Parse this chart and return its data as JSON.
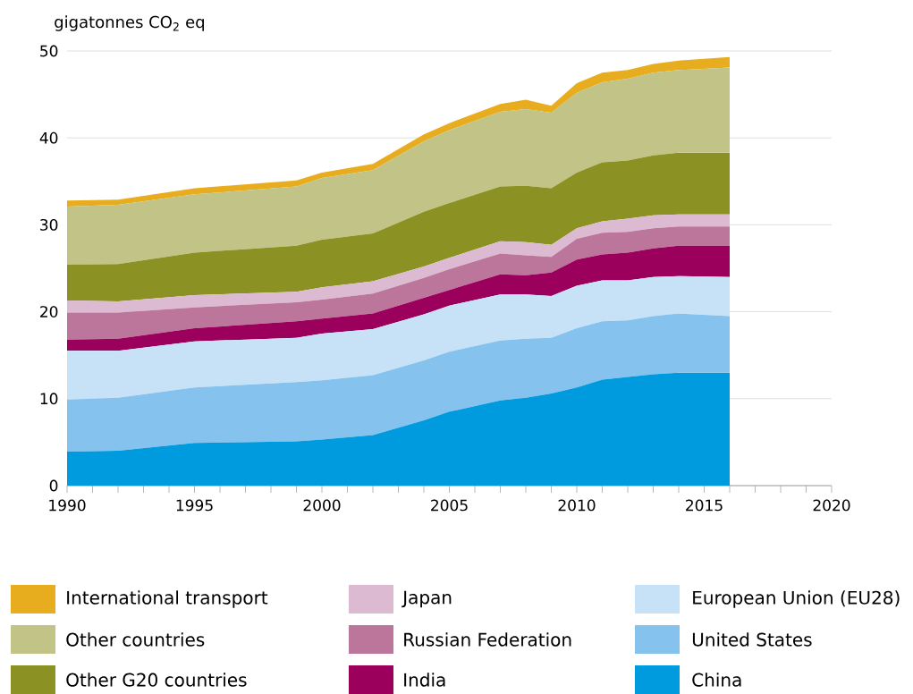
{
  "chart_data": {
    "type": "area",
    "stacked": true,
    "ylabel": "gigatonnes CO$_{2}$ eq",
    "x": [
      1990,
      1992,
      1995,
      1999,
      2000,
      2002,
      2004,
      2005,
      2007,
      2008,
      2009,
      2010,
      2011,
      2012,
      2013,
      2014,
      2016
    ],
    "series": [
      {
        "name": "China",
        "color": "#009ade",
        "values": [
          3.9,
          4.0,
          4.9,
          5.1,
          5.3,
          5.8,
          7.5,
          8.5,
          9.8,
          10.1,
          10.6,
          11.3,
          12.2,
          12.5,
          12.8,
          13.0,
          13.0
        ]
      },
      {
        "name": "United States",
        "color": "#85c2ed",
        "values": [
          6.0,
          6.1,
          6.4,
          6.8,
          6.8,
          6.9,
          6.9,
          6.9,
          6.9,
          6.8,
          6.4,
          6.8,
          6.7,
          6.5,
          6.7,
          6.8,
          6.5
        ]
      },
      {
        "name": "European Union (EU28)",
        "color": "#c7e2f7",
        "values": [
          5.6,
          5.4,
          5.3,
          5.1,
          5.4,
          5.3,
          5.3,
          5.3,
          5.3,
          5.1,
          4.8,
          4.9,
          4.7,
          4.6,
          4.5,
          4.3,
          4.5
        ]
      },
      {
        "name": "India",
        "color": "#9b005c",
        "values": [
          1.3,
          1.4,
          1.5,
          1.9,
          1.7,
          1.8,
          1.9,
          1.8,
          2.3,
          2.2,
          2.7,
          3.0,
          3.0,
          3.2,
          3.3,
          3.5,
          3.6
        ]
      },
      {
        "name": "Russian Federation",
        "color": "#bd769b",
        "values": [
          3.1,
          3.0,
          2.4,
          2.2,
          2.2,
          2.3,
          2.3,
          2.4,
          2.4,
          2.3,
          1.8,
          2.4,
          2.5,
          2.4,
          2.3,
          2.2,
          2.2
        ]
      },
      {
        "name": "Japan",
        "color": "#dcbad2",
        "values": [
          1.4,
          1.3,
          1.4,
          1.2,
          1.4,
          1.4,
          1.3,
          1.3,
          1.4,
          1.5,
          1.4,
          1.2,
          1.3,
          1.5,
          1.5,
          1.4,
          1.4
        ]
      },
      {
        "name": "Other G20 countries",
        "color": "#8b9123",
        "values": [
          4.1,
          4.3,
          4.9,
          5.3,
          5.5,
          5.5,
          6.3,
          6.3,
          6.3,
          6.5,
          6.5,
          6.4,
          6.8,
          6.7,
          6.9,
          7.1,
          7.1
        ]
      },
      {
        "name": "Other countries",
        "color": "#c2c386",
        "values": [
          6.7,
          6.8,
          6.7,
          6.8,
          7.1,
          7.3,
          8.1,
          8.4,
          8.6,
          8.8,
          8.7,
          9.2,
          9.2,
          9.4,
          9.5,
          9.5,
          9.8
        ]
      },
      {
        "name": "International transport",
        "color": "#e8ad1f",
        "values": [
          0.7,
          0.6,
          0.7,
          0.7,
          0.6,
          0.7,
          0.8,
          0.8,
          0.9,
          1.1,
          0.8,
          1.1,
          1.1,
          1.0,
          1.0,
          1.1,
          1.2
        ]
      }
    ],
    "xlim": [
      1990,
      2020
    ],
    "xticks": [
      1990,
      {
        "value": 1991,
        "label": null
      },
      {
        "value": 1992,
        "label": null
      },
      {
        "value": 1993,
        "label": null
      },
      {
        "value": 1994,
        "label": null
      },
      1995,
      {
        "value": 1996,
        "label": null
      },
      {
        "value": 1997,
        "label": null
      },
      {
        "value": 1998,
        "label": null
      },
      {
        "value": 1999,
        "label": null
      },
      2000,
      {
        "value": 2001,
        "label": null
      },
      {
        "value": 2002,
        "label": null
      },
      {
        "value": 2003,
        "label": null
      },
      {
        "value": 2004,
        "label": null
      },
      2005,
      {
        "value": 2006,
        "label": null
      },
      {
        "value": 2007,
        "label": null
      },
      {
        "value": 2008,
        "label": null
      },
      {
        "value": 2009,
        "label": null
      },
      2010,
      {
        "value": 2011,
        "label": null
      },
      {
        "value": 2012,
        "label": null
      },
      {
        "value": 2013,
        "label": null
      },
      {
        "value": 2014,
        "label": null
      },
      2015,
      {
        "value": 2016,
        "label": null
      },
      {
        "value": 2017,
        "label": null
      },
      {
        "value": 2018,
        "label": null
      },
      {
        "value": 2019,
        "label": null
      },
      2020
    ],
    "ylim": [
      0,
      50
    ],
    "yticks": [
      0,
      10,
      20,
      30,
      40,
      50
    ],
    "grid": "y",
    "legend": "bottom"
  }
}
